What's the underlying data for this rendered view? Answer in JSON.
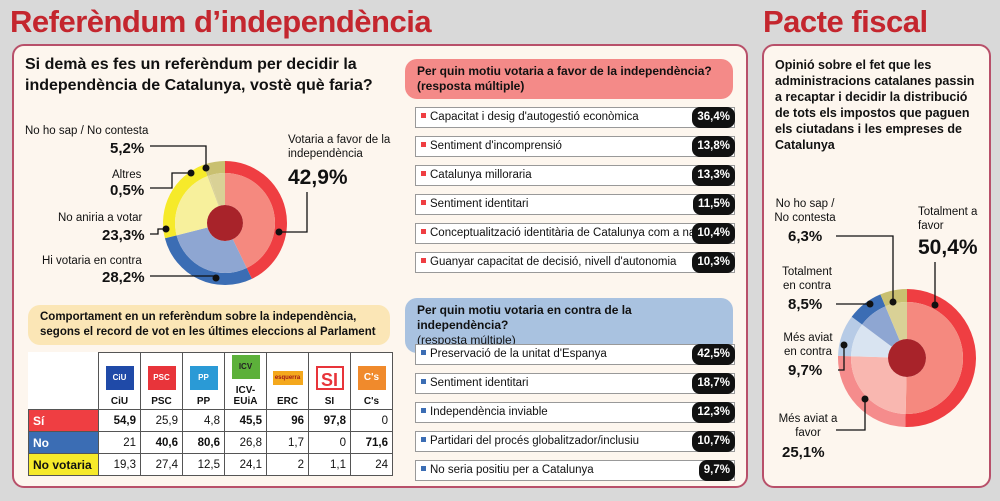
{
  "titles": {
    "main": "Referèndum d’independència",
    "fiscal": "Pacte fiscal"
  },
  "colors": {
    "title": "#c4262e",
    "favor": "#ef3e42",
    "contra": "#3b6db4",
    "noaniria": "#f6ea2a",
    "nosap": "#c9c070"
  },
  "chart_data": [
    {
      "type": "pie",
      "title": "Si demà es fes un referèndum per decidir la independència de Catalunya, vostè què faria?",
      "slices": [
        {
          "label": "Votaria a favor de la independència",
          "value": 42.9,
          "display": "42,9%",
          "outer": "#ef3e42",
          "inner": "#f5897f"
        },
        {
          "label": "Hi votaria en contra",
          "value": 28.2,
          "display": "28,2%",
          "outer": "#3b6db4",
          "inner": "#8ea6d2"
        },
        {
          "label": "No aniria a votar",
          "value": 23.3,
          "display": "23,3%",
          "outer": "#f6ea2a",
          "inner": "#f7f09c"
        },
        {
          "label": "Altres",
          "value": 0.5,
          "display": "0,5%",
          "outer": "#c9c070",
          "inner": "#d9d196"
        },
        {
          "label": "No ho sap / No contesta",
          "value": 5.2,
          "display": "5,2%",
          "outer": "#c9c070",
          "inner": "#d9d196"
        }
      ]
    },
    {
      "type": "bar",
      "title": "Per quin motiu votaria a favor de la independència?",
      "subtitle": "(resposta múltiple)",
      "categories": [
        "Capacitat i desig d'autogestió econòmica",
        "Sentiment d'incomprensió",
        "Catalunya milloraria",
        "Sentiment identitari",
        "Conceptualització identitària de Catalunya com a nació",
        "Guanyar capacitat de decisió, nivell d'autonomia"
      ],
      "values": [
        36.4,
        13.8,
        13.3,
        11.5,
        10.4,
        10.3
      ],
      "display": [
        "36,4%",
        "13,8%",
        "13,3%",
        "11,5%",
        "10,4%",
        "10,3%"
      ]
    },
    {
      "type": "bar",
      "title": "Per quin motiu votaria en contra de la independència?",
      "subtitle": "(resposta múltiple)",
      "categories": [
        "Preservació de la unitat d'Espanya",
        "Sentiment identitari",
        "Independència inviable",
        "Partidari del procés globalitzador/inclusiu",
        "No seria positiu per a Catalunya"
      ],
      "values": [
        42.5,
        18.7,
        12.3,
        10.7,
        9.7
      ],
      "display": [
        "42,5%",
        "18,7%",
        "12,3%",
        "10,7%",
        "9,7%"
      ]
    },
    {
      "type": "table",
      "title": "Comportament en un referèndum sobre la independència, segons el record de vot en les últimes eleccions al Parlament",
      "columns": [
        "CiU",
        "PSC",
        "PP",
        "ICV-EUiA",
        "ERC",
        "SI",
        "C's"
      ],
      "logos": [
        "CiU",
        "PSC",
        "PP",
        "ICV",
        "esquerra",
        "SI",
        "C's"
      ],
      "rows": [
        {
          "label": "Sí",
          "values": [
            "54,9",
            "25,9",
            "4,8",
            "45,5",
            "96",
            "97,8",
            "0"
          ],
          "bold": [
            true,
            false,
            false,
            true,
            true,
            true,
            false
          ]
        },
        {
          "label": "No",
          "values": [
            "21",
            "40,6",
            "80,6",
            "26,8",
            "1,7",
            "0",
            "71,6"
          ],
          "bold": [
            false,
            true,
            true,
            false,
            false,
            false,
            true
          ]
        },
        {
          "label": "No votaria",
          "values": [
            "19,3",
            "27,4",
            "12,5",
            "24,1",
            "2",
            "1,1",
            "24"
          ],
          "bold": [
            false,
            false,
            false,
            false,
            false,
            false,
            false
          ]
        }
      ]
    },
    {
      "type": "pie",
      "title": "Opinió sobre el fet que les administracions catalanes passin a recaptar i decidir la distribució de tots els impostos que paguen els ciutadans i les empreses de Catalunya",
      "slices": [
        {
          "label": "Totalment a favor",
          "value": 50.4,
          "display": "50,4%",
          "outer": "#ef3e42",
          "inner": "#f5897f"
        },
        {
          "label": "Més aviat a favor",
          "value": 25.1,
          "display": "25,1%",
          "outer": "#f58c8c",
          "inner": "#f9b7b0"
        },
        {
          "label": "Més aviat en contra",
          "value": 9.7,
          "display": "9,7%",
          "outer": "#b7cbe6",
          "inner": "#d9e4f1"
        },
        {
          "label": "Totalment en contra",
          "value": 8.5,
          "display": "8,5%",
          "outer": "#3b6db4",
          "inner": "#8ea6d2"
        },
        {
          "label": "No ho sap / No contesta",
          "value": 6.3,
          "display": "6,3%",
          "outer": "#c9c070",
          "inner": "#d9d196"
        }
      ]
    }
  ]
}
